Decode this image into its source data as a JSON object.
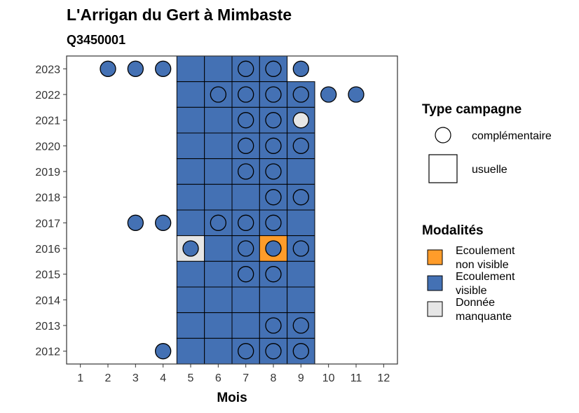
{
  "chart_data": {
    "type": "heatmap",
    "title": "L'Arrigan du Gert à Mimbaste",
    "subtitle": "Q3450001",
    "xlabel": "Mois",
    "ylabel": "",
    "x_ticks": [
      "1",
      "2",
      "3",
      "4",
      "5",
      "6",
      "7",
      "8",
      "9",
      "10",
      "11",
      "12"
    ],
    "y_ticks": [
      "2012",
      "2013",
      "2014",
      "2015",
      "2016",
      "2017",
      "2018",
      "2019",
      "2020",
      "2021",
      "2022",
      "2023"
    ],
    "xlim": [
      0.5,
      12.5
    ],
    "ylim": [
      2011.5,
      2023.5
    ],
    "colors": {
      "ecoulement_non_visible": "#ff9c2a",
      "ecoulement_visible": "#4471b4",
      "donnee_manquante": "#e6e6e6"
    },
    "legend_campaign": {
      "title": "Type campagne",
      "items": [
        {
          "shape": "circle",
          "label": "complémentaire"
        },
        {
          "shape": "square",
          "label": "usuelle"
        }
      ]
    },
    "legend_modalities": {
      "title": "Modalités",
      "items": [
        {
          "key": "ecoulement_non_visible",
          "label_lines": [
            "Ecoulement",
            "non visible"
          ]
        },
        {
          "key": "ecoulement_visible",
          "label_lines": [
            "Ecoulement",
            "visible"
          ]
        },
        {
          "key": "donnee_manquante",
          "label_lines": [
            "Donnée",
            "manquante"
          ]
        }
      ]
    },
    "squares": [
      {
        "year": 2023,
        "month": 5,
        "m": "ecoulement_visible"
      },
      {
        "year": 2023,
        "month": 6,
        "m": "ecoulement_visible"
      },
      {
        "year": 2023,
        "month": 7,
        "m": "ecoulement_visible"
      },
      {
        "year": 2023,
        "month": 8,
        "m": "ecoulement_visible"
      },
      {
        "year": 2022,
        "month": 5,
        "m": "ecoulement_visible"
      },
      {
        "year": 2022,
        "month": 6,
        "m": "ecoulement_visible"
      },
      {
        "year": 2022,
        "month": 7,
        "m": "ecoulement_visible"
      },
      {
        "year": 2022,
        "month": 8,
        "m": "ecoulement_visible"
      },
      {
        "year": 2022,
        "month": 9,
        "m": "ecoulement_visible"
      },
      {
        "year": 2021,
        "month": 5,
        "m": "ecoulement_visible"
      },
      {
        "year": 2021,
        "month": 6,
        "m": "ecoulement_visible"
      },
      {
        "year": 2021,
        "month": 7,
        "m": "ecoulement_visible"
      },
      {
        "year": 2021,
        "month": 8,
        "m": "ecoulement_visible"
      },
      {
        "year": 2021,
        "month": 9,
        "m": "ecoulement_visible"
      },
      {
        "year": 2020,
        "month": 5,
        "m": "ecoulement_visible"
      },
      {
        "year": 2020,
        "month": 6,
        "m": "ecoulement_visible"
      },
      {
        "year": 2020,
        "month": 7,
        "m": "ecoulement_visible"
      },
      {
        "year": 2020,
        "month": 8,
        "m": "ecoulement_visible"
      },
      {
        "year": 2020,
        "month": 9,
        "m": "ecoulement_visible"
      },
      {
        "year": 2019,
        "month": 5,
        "m": "ecoulement_visible"
      },
      {
        "year": 2019,
        "month": 6,
        "m": "ecoulement_visible"
      },
      {
        "year": 2019,
        "month": 7,
        "m": "ecoulement_visible"
      },
      {
        "year": 2019,
        "month": 8,
        "m": "ecoulement_visible"
      },
      {
        "year": 2019,
        "month": 9,
        "m": "ecoulement_visible"
      },
      {
        "year": 2018,
        "month": 5,
        "m": "ecoulement_visible"
      },
      {
        "year": 2018,
        "month": 6,
        "m": "ecoulement_visible"
      },
      {
        "year": 2018,
        "month": 7,
        "m": "ecoulement_visible"
      },
      {
        "year": 2018,
        "month": 8,
        "m": "ecoulement_visible"
      },
      {
        "year": 2018,
        "month": 9,
        "m": "ecoulement_visible"
      },
      {
        "year": 2017,
        "month": 5,
        "m": "ecoulement_visible"
      },
      {
        "year": 2017,
        "month": 6,
        "m": "ecoulement_visible"
      },
      {
        "year": 2017,
        "month": 7,
        "m": "ecoulement_visible"
      },
      {
        "year": 2017,
        "month": 8,
        "m": "ecoulement_visible"
      },
      {
        "year": 2017,
        "month": 9,
        "m": "ecoulement_visible"
      },
      {
        "year": 2016,
        "month": 5,
        "m": "donnee_manquante"
      },
      {
        "year": 2016,
        "month": 6,
        "m": "ecoulement_visible"
      },
      {
        "year": 2016,
        "month": 7,
        "m": "ecoulement_visible"
      },
      {
        "year": 2016,
        "month": 8,
        "m": "ecoulement_non_visible"
      },
      {
        "year": 2016,
        "month": 9,
        "m": "ecoulement_visible"
      },
      {
        "year": 2015,
        "month": 5,
        "m": "ecoulement_visible"
      },
      {
        "year": 2015,
        "month": 6,
        "m": "ecoulement_visible"
      },
      {
        "year": 2015,
        "month": 7,
        "m": "ecoulement_visible"
      },
      {
        "year": 2015,
        "month": 8,
        "m": "ecoulement_visible"
      },
      {
        "year": 2015,
        "month": 9,
        "m": "ecoulement_visible"
      },
      {
        "year": 2014,
        "month": 5,
        "m": "ecoulement_visible"
      },
      {
        "year": 2014,
        "month": 6,
        "m": "ecoulement_visible"
      },
      {
        "year": 2014,
        "month": 7,
        "m": "ecoulement_visible"
      },
      {
        "year": 2014,
        "month": 8,
        "m": "ecoulement_visible"
      },
      {
        "year": 2014,
        "month": 9,
        "m": "ecoulement_visible"
      },
      {
        "year": 2013,
        "month": 5,
        "m": "ecoulement_visible"
      },
      {
        "year": 2013,
        "month": 6,
        "m": "ecoulement_visible"
      },
      {
        "year": 2013,
        "month": 7,
        "m": "ecoulement_visible"
      },
      {
        "year": 2013,
        "month": 8,
        "m": "ecoulement_visible"
      },
      {
        "year": 2013,
        "month": 9,
        "m": "ecoulement_visible"
      },
      {
        "year": 2012,
        "month": 5,
        "m": "ecoulement_visible"
      },
      {
        "year": 2012,
        "month": 6,
        "m": "ecoulement_visible"
      },
      {
        "year": 2012,
        "month": 7,
        "m": "ecoulement_visible"
      },
      {
        "year": 2012,
        "month": 8,
        "m": "ecoulement_visible"
      },
      {
        "year": 2012,
        "month": 9,
        "m": "ecoulement_visible"
      }
    ],
    "circles": [
      {
        "year": 2023,
        "month": 2,
        "m": "ecoulement_visible"
      },
      {
        "year": 2023,
        "month": 3,
        "m": "ecoulement_visible"
      },
      {
        "year": 2023,
        "month": 4,
        "m": "ecoulement_visible"
      },
      {
        "year": 2023,
        "month": 7,
        "m": "ecoulement_visible"
      },
      {
        "year": 2023,
        "month": 8,
        "m": "ecoulement_visible"
      },
      {
        "year": 2023,
        "month": 9,
        "m": "ecoulement_visible"
      },
      {
        "year": 2022,
        "month": 6,
        "m": "ecoulement_visible"
      },
      {
        "year": 2022,
        "month": 7,
        "m": "ecoulement_visible"
      },
      {
        "year": 2022,
        "month": 8,
        "m": "ecoulement_visible"
      },
      {
        "year": 2022,
        "month": 9,
        "m": "ecoulement_visible"
      },
      {
        "year": 2022,
        "month": 10,
        "m": "ecoulement_visible"
      },
      {
        "year": 2022,
        "month": 11,
        "m": "ecoulement_visible"
      },
      {
        "year": 2021,
        "month": 7,
        "m": "ecoulement_visible"
      },
      {
        "year": 2021,
        "month": 8,
        "m": "ecoulement_visible"
      },
      {
        "year": 2021,
        "month": 9,
        "m": "donnee_manquante"
      },
      {
        "year": 2020,
        "month": 7,
        "m": "ecoulement_visible"
      },
      {
        "year": 2020,
        "month": 8,
        "m": "ecoulement_visible"
      },
      {
        "year": 2020,
        "month": 9,
        "m": "ecoulement_visible"
      },
      {
        "year": 2019,
        "month": 7,
        "m": "ecoulement_visible"
      },
      {
        "year": 2019,
        "month": 8,
        "m": "ecoulement_visible"
      },
      {
        "year": 2018,
        "month": 8,
        "m": "ecoulement_visible"
      },
      {
        "year": 2018,
        "month": 9,
        "m": "ecoulement_visible"
      },
      {
        "year": 2017,
        "month": 3,
        "m": "ecoulement_visible"
      },
      {
        "year": 2017,
        "month": 4,
        "m": "ecoulement_visible"
      },
      {
        "year": 2017,
        "month": 6,
        "m": "ecoulement_visible"
      },
      {
        "year": 2017,
        "month": 7,
        "m": "ecoulement_visible"
      },
      {
        "year": 2017,
        "month": 8,
        "m": "ecoulement_visible"
      },
      {
        "year": 2016,
        "month": 5,
        "m": "ecoulement_visible"
      },
      {
        "year": 2016,
        "month": 7,
        "m": "ecoulement_visible"
      },
      {
        "year": 2016,
        "month": 8,
        "m": "ecoulement_visible"
      },
      {
        "year": 2016,
        "month": 9,
        "m": "ecoulement_visible"
      },
      {
        "year": 2015,
        "month": 7,
        "m": "ecoulement_visible"
      },
      {
        "year": 2015,
        "month": 8,
        "m": "ecoulement_visible"
      },
      {
        "year": 2013,
        "month": 8,
        "m": "ecoulement_visible"
      },
      {
        "year": 2013,
        "month": 9,
        "m": "ecoulement_visible"
      },
      {
        "year": 2012,
        "month": 4,
        "m": "ecoulement_visible"
      },
      {
        "year": 2012,
        "month": 7,
        "m": "ecoulement_visible"
      },
      {
        "year": 2012,
        "month": 8,
        "m": "ecoulement_visible"
      },
      {
        "year": 2012,
        "month": 9,
        "m": "ecoulement_visible"
      }
    ]
  }
}
